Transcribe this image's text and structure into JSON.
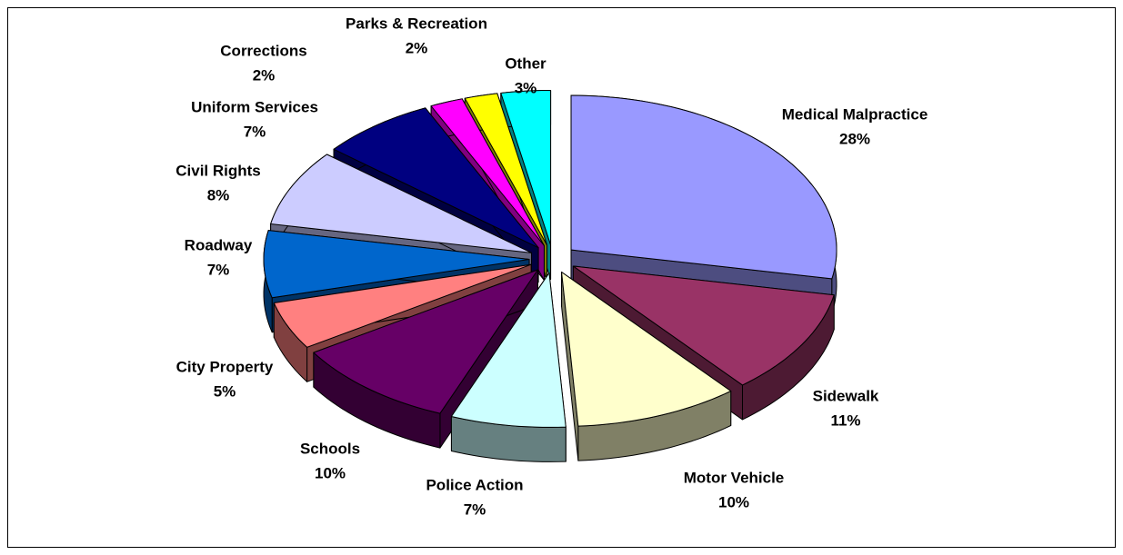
{
  "chart_data": {
    "type": "pie",
    "categories": [
      "Medical Malpractice",
      "Sidewalk",
      "Motor Vehicle",
      "Police Action",
      "Schools",
      "City Property",
      "Roadway",
      "Civil Rights",
      "Uniform Services",
      "Corrections",
      "Parks & Recreation",
      "Other"
    ],
    "values": [
      28,
      11,
      10,
      7,
      10,
      5,
      7,
      8,
      7,
      2,
      2,
      3
    ],
    "value_labels": [
      "28%",
      "11%",
      "10%",
      "7%",
      "10%",
      "5%",
      "7%",
      "8%",
      "7%",
      "2%",
      "2%",
      "3%"
    ],
    "colors": [
      "#9999ff",
      "#993366",
      "#ffffcc",
      "#ccffff",
      "#660066",
      "#ff8080",
      "#0066cc",
      "#ccccff",
      "#000080",
      "#ff00ff",
      "#ffff00",
      "#00ffff"
    ]
  }
}
